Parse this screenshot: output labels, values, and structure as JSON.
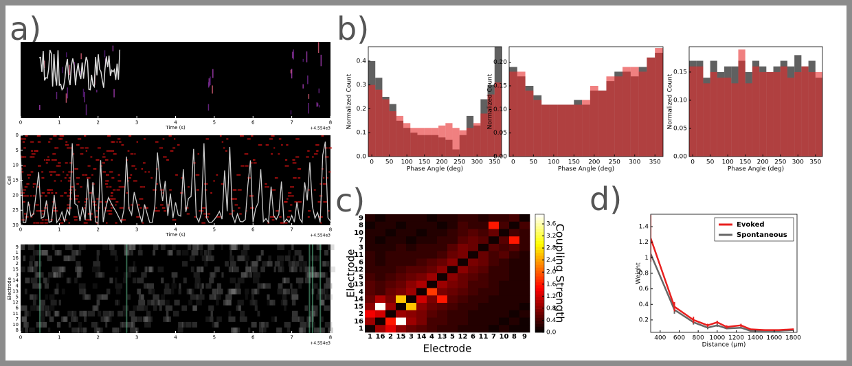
{
  "panel_labels": [
    "a)",
    "b)",
    "c)",
    "d)"
  ],
  "chart_data": [
    {
      "type": "image",
      "xlabel": "Time (s)",
      "offset_label": "+4.554e3",
      "xlim": [
        0,
        8
      ],
      "xticks": [
        0,
        1,
        2,
        3,
        4,
        5,
        6,
        7,
        8
      ]
    },
    {
      "type": "image",
      "xlabel": "Time (s)",
      "ylabel": "Cell",
      "offset_label": "+4.554e3",
      "xlim": [
        0,
        8
      ],
      "xticks": [
        0,
        1,
        2,
        3,
        4,
        5,
        6,
        7,
        8
      ],
      "ylim": [
        0,
        30
      ],
      "yticks": [
        0,
        5,
        10,
        15,
        20,
        25,
        30
      ],
      "y_inverted": true
    },
    {
      "type": "image",
      "ylabel": "Electrode",
      "offset_label": "+4.554e3",
      "xlim": [
        0,
        8
      ],
      "xticks": [
        0,
        1,
        2,
        3,
        4,
        5,
        6,
        7,
        8
      ],
      "categories": [
        "9",
        "1",
        "16",
        "2",
        "15",
        "3",
        "14",
        "4",
        "13",
        "5",
        "12",
        "6",
        "11",
        "7",
        "10",
        "8"
      ]
    },
    {
      "type": "histogram",
      "xlabel": "Phase Angle (deg)",
      "ylabel": "Normalized Count",
      "bins": [
        -10,
        10,
        30,
        50,
        70,
        90,
        110,
        130,
        150,
        170,
        190,
        210,
        230,
        250,
        270,
        290,
        310,
        330,
        350,
        370
      ],
      "series": [
        {
          "color": "#444444",
          "alpha": 0.85,
          "values": [
            0.4,
            0.33,
            0.25,
            0.22,
            0.15,
            0.12,
            0.1,
            0.09,
            0.09,
            0.09,
            0.08,
            0.07,
            0.03,
            0.09,
            0.17,
            0.13,
            0.24,
            0.3,
            0.46
          ]
        },
        {
          "color": "#e62b2b",
          "alpha": 0.6,
          "values": [
            0.3,
            0.28,
            0.24,
            0.19,
            0.17,
            0.14,
            0.12,
            0.12,
            0.12,
            0.12,
            0.13,
            0.14,
            0.12,
            0.11,
            0.12,
            0.14,
            0.18,
            0.26,
            0.31
          ]
        }
      ],
      "xlim": [
        -10,
        370
      ],
      "xticks": [
        0,
        50,
        100,
        150,
        200,
        250,
        300,
        350
      ],
      "ylim": [
        0,
        0.46
      ],
      "yticks": [
        {
          "value": 0,
          "label": "0.0"
        },
        0.1,
        0.2,
        0.3,
        0.4
      ]
    },
    {
      "type": "histogram",
      "xlabel": "Phase Angle (deg)",
      "ylabel": "Normalized Count",
      "bins": [
        -10,
        10,
        30,
        50,
        70,
        90,
        110,
        130,
        150,
        170,
        190,
        210,
        230,
        250,
        270,
        290,
        310,
        330,
        350,
        370
      ],
      "series": [
        {
          "color": "#444444",
          "alpha": 0.85,
          "values": [
            0.19,
            0.17,
            0.15,
            0.13,
            0.11,
            0.11,
            0.11,
            0.11,
            0.12,
            0.11,
            0.14,
            0.14,
            0.16,
            0.18,
            0.18,
            0.17,
            0.19,
            0.21,
            0.22
          ]
        },
        {
          "color": "#e62b2b",
          "alpha": 0.6,
          "values": [
            0.18,
            0.18,
            0.14,
            0.12,
            0.11,
            0.11,
            0.11,
            0.11,
            0.11,
            0.12,
            0.15,
            0.14,
            0.17,
            0.17,
            0.19,
            0.19,
            0.18,
            0.21,
            0.23
          ]
        }
      ],
      "xlim": [
        -10,
        370
      ],
      "xticks": [
        0,
        50,
        100,
        150,
        200,
        250,
        300,
        350
      ],
      "ylim": [
        0,
        0.233
      ],
      "yticks": [
        {
          "value": 0,
          "label": "0.00"
        },
        0.05,
        {
          "value": 0.1,
          "label": "0.10"
        },
        0.15,
        {
          "value": 0.2,
          "label": "0.20"
        }
      ]
    },
    {
      "type": "histogram",
      "xlabel": "Phase Angle (deg)",
      "ylabel": "Normalized Count",
      "bins": [
        -10,
        10,
        30,
        50,
        70,
        90,
        110,
        130,
        150,
        170,
        190,
        210,
        230,
        250,
        270,
        290,
        310,
        330,
        350,
        370
      ],
      "series": [
        {
          "color": "#444444",
          "alpha": 0.85,
          "values": [
            0.17,
            0.17,
            0.14,
            0.17,
            0.15,
            0.16,
            0.16,
            0.17,
            0.15,
            0.17,
            0.16,
            0.15,
            0.16,
            0.17,
            0.16,
            0.18,
            0.16,
            0.17,
            0.14
          ]
        },
        {
          "color": "#e62b2b",
          "alpha": 0.6,
          "values": [
            0.16,
            0.16,
            0.13,
            0.15,
            0.14,
            0.14,
            0.13,
            0.19,
            0.13,
            0.16,
            0.15,
            0.15,
            0.15,
            0.16,
            0.14,
            0.15,
            0.16,
            0.15,
            0.15
          ]
        }
      ],
      "xlim": [
        -10,
        370
      ],
      "xticks": [
        0,
        50,
        100,
        150,
        200,
        250,
        300,
        350
      ],
      "ylim": [
        0,
        0.195
      ],
      "yticks": [
        {
          "value": 0,
          "label": "0.00"
        },
        0.05,
        {
          "value": 0.1,
          "label": "0.10"
        },
        0.15
      ]
    },
    {
      "type": "heatmap",
      "xlabel": "Electrode",
      "ylabel": "Electrode",
      "colorbar_label": "Coupling Strength",
      "colormap": "hot",
      "x_categories": [
        "1",
        "16",
        "2",
        "15",
        "3",
        "14",
        "4",
        "13",
        "5",
        "12",
        "6",
        "11",
        "7",
        "10",
        "8",
        "9"
      ],
      "y_categories": [
        "9",
        "8",
        "10",
        "7",
        "3",
        "11",
        "6",
        "12",
        "5",
        "13",
        "4",
        "14",
        "15",
        "2",
        "16",
        "1"
      ],
      "values": [
        [
          0.2,
          0.1,
          0.2,
          0.2,
          0.2,
          0.2,
          0.1,
          0.2,
          0.2,
          0.3,
          0.3,
          0.2,
          0.3,
          0.3,
          0.4,
          0.1
        ],
        [
          0.1,
          0.2,
          0.2,
          0.1,
          0.2,
          0.2,
          0.2,
          0.1,
          0.2,
          0.4,
          0.3,
          0.3,
          1.6,
          0.4,
          0.1,
          0.4
        ],
        [
          0.2,
          0.2,
          0.1,
          0.2,
          0.2,
          0.1,
          0.2,
          0.2,
          0.3,
          0.4,
          0.5,
          0.4,
          0.6,
          0.1,
          0.4,
          0.3
        ],
        [
          0.2,
          0.1,
          0.2,
          0.2,
          0.1,
          0.2,
          0.2,
          0.3,
          0.3,
          0.5,
          0.6,
          0.5,
          0.1,
          0.5,
          1.6,
          0.3
        ],
        [
          0.2,
          0.2,
          0.2,
          0.3,
          0.2,
          0.3,
          0.3,
          0.3,
          0.5,
          0.7,
          0.6,
          0.1,
          0.5,
          0.4,
          0.5,
          0.3
        ],
        [
          0.3,
          0.2,
          0.3,
          0.3,
          0.3,
          0.3,
          0.3,
          0.4,
          0.6,
          0.7,
          0.1,
          0.6,
          0.4,
          0.5,
          0.3,
          0.2
        ],
        [
          0.3,
          0.2,
          0.3,
          0.3,
          0.3,
          0.4,
          0.5,
          0.6,
          0.8,
          0.1,
          0.7,
          0.6,
          0.4,
          0.3,
          0.2,
          0.2
        ],
        [
          0.3,
          0.3,
          0.3,
          0.4,
          0.5,
          0.5,
          0.6,
          0.8,
          0.1,
          0.8,
          0.6,
          0.5,
          0.3,
          0.3,
          0.2,
          0.2
        ],
        [
          0.4,
          0.3,
          0.4,
          0.5,
          0.6,
          0.7,
          0.9,
          0.1,
          0.8,
          0.6,
          0.5,
          0.4,
          0.3,
          0.3,
          0.2,
          0.2
        ],
        [
          0.5,
          0.4,
          0.5,
          0.6,
          0.8,
          1.0,
          0.1,
          0.9,
          0.7,
          0.6,
          0.4,
          0.4,
          0.3,
          0.2,
          0.2,
          0.2
        ],
        [
          0.5,
          0.4,
          0.6,
          0.7,
          0.9,
          0.1,
          1.8,
          0.7,
          0.6,
          0.5,
          0.4,
          0.3,
          0.3,
          0.2,
          0.2,
          0.2
        ],
        [
          0.6,
          1.0,
          0.7,
          2.6,
          0.1,
          1.2,
          0.7,
          1.6,
          0.5,
          0.4,
          0.3,
          0.3,
          0.2,
          0.2,
          0.2,
          0.2
        ],
        [
          0.8,
          3.9,
          0.9,
          0.1,
          2.6,
          0.8,
          0.6,
          0.5,
          0.4,
          0.3,
          0.3,
          0.2,
          0.2,
          0.2,
          0.2,
          0.1
        ],
        [
          1.4,
          1.2,
          0.1,
          0.9,
          0.8,
          0.7,
          0.5,
          0.4,
          0.3,
          0.3,
          0.2,
          0.2,
          0.2,
          0.2,
          0.1,
          0.2
        ],
        [
          0.9,
          0.1,
          1.6,
          3.9,
          0.9,
          0.7,
          0.4,
          0.4,
          0.3,
          0.3,
          0.2,
          0.2,
          0.2,
          0.1,
          0.2,
          0.1
        ],
        [
          0.1,
          0.9,
          1.3,
          0.8,
          0.6,
          0.5,
          0.4,
          0.3,
          0.3,
          0.2,
          0.2,
          0.2,
          0.1,
          0.2,
          0.1,
          0.1
        ]
      ],
      "clim": [
        0,
        3.92
      ],
      "colorbar_ticks": [
        {
          "value": 0,
          "label": "0.0"
        },
        0.4,
        0.8,
        1.2,
        1.6,
        {
          "value": 2,
          "label": "2.0"
        },
        2.4,
        2.8,
        3.2,
        3.6
      ]
    },
    {
      "type": "line",
      "xlabel": "Distance (μm)",
      "ylabel": "Weight",
      "legend": "upper right",
      "x": [
        300,
        550,
        750,
        900,
        1000,
        1100,
        1250,
        1350,
        1500,
        1650,
        1800
      ],
      "series": [
        {
          "name": "Evoked",
          "color": "#e8201f",
          "values": [
            1.25,
            0.37,
            0.2,
            0.13,
            0.17,
            0.11,
            0.13,
            0.08,
            0.07,
            0.07,
            0.08
          ],
          "errors": [
            0.3,
            0.06,
            0.04,
            0.02,
            0.02,
            0.02,
            0.02,
            0.01,
            0.01,
            0.01,
            0.01
          ]
        },
        {
          "name": "Spontaneous",
          "color": "#666666",
          "values": [
            1.05,
            0.33,
            0.17,
            0.1,
            0.13,
            0.09,
            0.1,
            0.06,
            0.06,
            0.06,
            0.07
          ],
          "errors": [
            0.05,
            0.05,
            0.03,
            0.02,
            0.02,
            0.01,
            0.01,
            0.01,
            0.01,
            0.01,
            0.01
          ]
        }
      ],
      "xlim": [
        300,
        1840
      ],
      "xticks": [
        400,
        600,
        800,
        1000,
        1200,
        1400,
        1600,
        1800
      ],
      "ylim": [
        0.04,
        1.56
      ],
      "yticks": [
        0.2,
        0.4,
        0.6,
        0.8,
        1.0,
        1.2,
        1.4
      ]
    }
  ]
}
